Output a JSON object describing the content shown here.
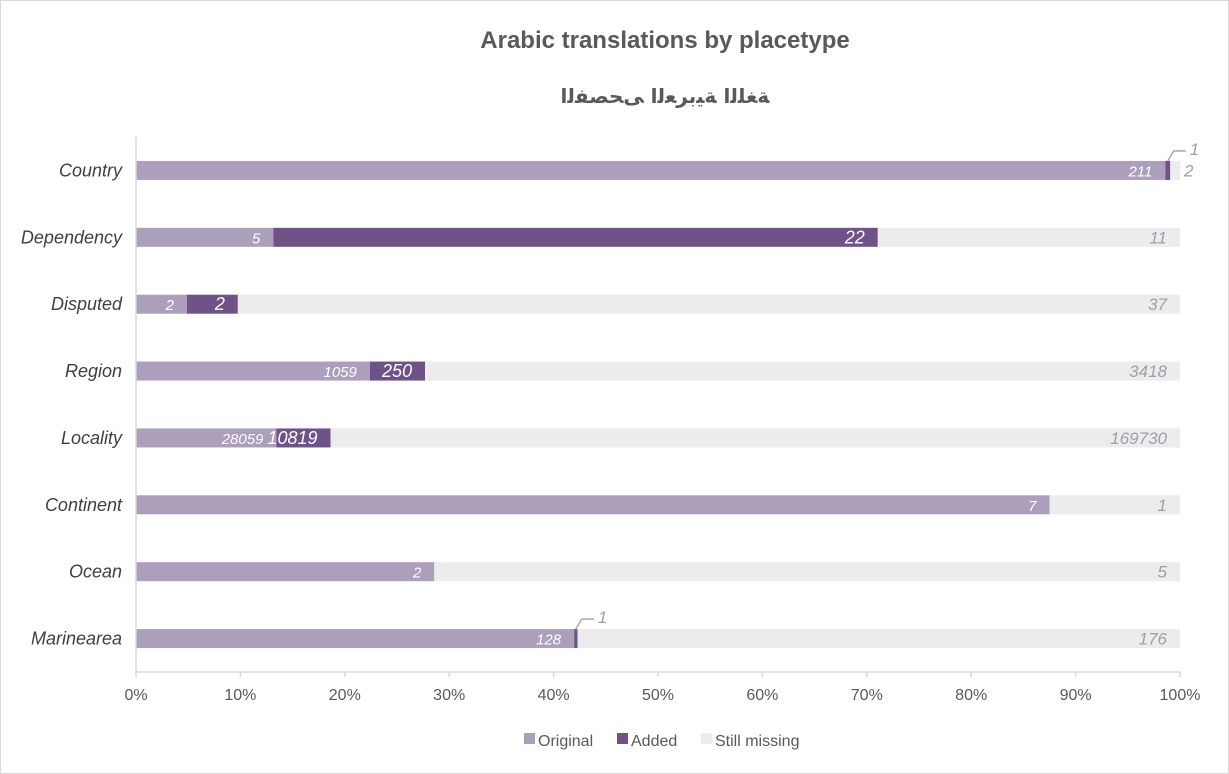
{
  "chart_data": {
    "type": "bar",
    "orientation": "horizontal",
    "stacking": "percent",
    "title": "Arabic translations by placetype",
    "subtitle": "ﺔﻐﻠﻟﺍ ﺔﻴﺑﺮﻌﻟﺍ ﻰﺤﺼﻔﻟﺍ",
    "categories": [
      "Country",
      "Dependency",
      "Disputed",
      "Region",
      "Locality",
      "Continent",
      "Ocean",
      "Marinearea"
    ],
    "series": [
      {
        "name": "Original",
        "color": "#ab9fbc",
        "values": [
          211,
          5,
          2,
          1059,
          28059,
          7,
          2,
          128
        ]
      },
      {
        "name": "Added",
        "color": "#6f5288",
        "values": [
          1,
          22,
          2,
          250,
          10819,
          0,
          0,
          1
        ]
      },
      {
        "name": "Still missing",
        "color": "#ececec",
        "values": [
          2,
          11,
          37,
          3418,
          169730,
          1,
          5,
          176
        ]
      }
    ],
    "x_ticks": [
      "0%",
      "10%",
      "20%",
      "30%",
      "40%",
      "50%",
      "60%",
      "70%",
      "80%",
      "90%",
      "100%"
    ],
    "xlim": [
      0,
      100
    ],
    "grid": false,
    "legend_position": "bottom"
  }
}
